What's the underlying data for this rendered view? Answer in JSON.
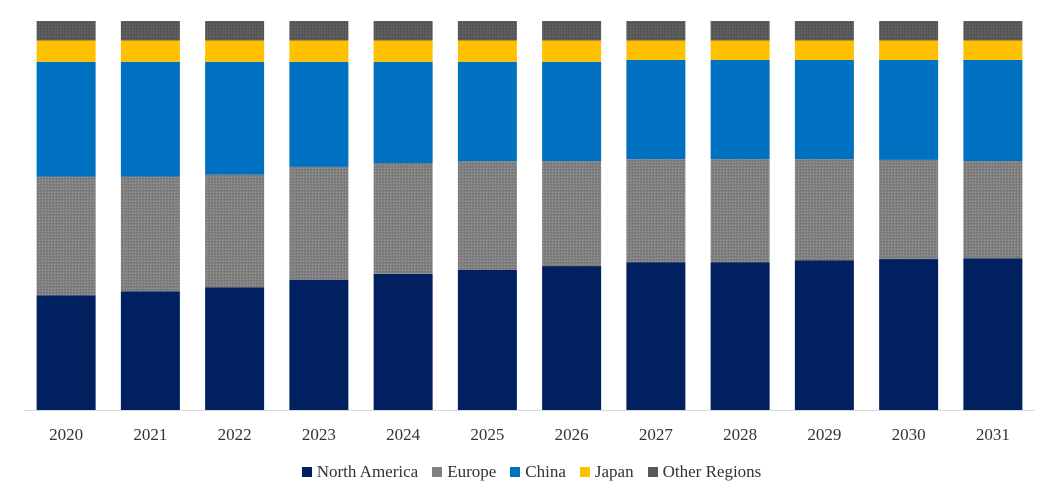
{
  "chart_data": {
    "type": "bar",
    "stacked": true,
    "normalized": true,
    "title": "",
    "xlabel": "",
    "ylabel": "",
    "ylim": [
      0,
      100
    ],
    "grid": false,
    "legend_position": "bottom",
    "categories": [
      "2020",
      "2021",
      "2022",
      "2023",
      "2024",
      "2025",
      "2026",
      "2027",
      "2028",
      "2029",
      "2030",
      "2031"
    ],
    "series": [
      {
        "name": "North America",
        "color": "#002060",
        "pattern": "solid",
        "values": [
          29.5,
          30.5,
          31.5,
          33.5,
          35.0,
          36.0,
          37.0,
          38.0,
          38.0,
          38.5,
          38.8,
          39.0
        ]
      },
      {
        "name": "Europe",
        "color": "#808080",
        "pattern": "dotted",
        "values": [
          30.5,
          29.5,
          29.0,
          29.0,
          28.5,
          28.0,
          27.0,
          26.5,
          26.5,
          26.0,
          25.5,
          25.0
        ]
      },
      {
        "name": "China",
        "color": "#0070C0",
        "pattern": "solid",
        "values": [
          29.5,
          29.5,
          29.0,
          27.0,
          26.0,
          25.5,
          25.5,
          25.5,
          25.5,
          25.5,
          25.7,
          26.0
        ]
      },
      {
        "name": "Japan",
        "color": "#FFC000",
        "pattern": "solid",
        "values": [
          5.5,
          5.5,
          5.5,
          5.5,
          5.5,
          5.5,
          5.5,
          5.0,
          5.0,
          5.0,
          5.0,
          5.0
        ]
      },
      {
        "name": "Other Regions",
        "color": "#595959",
        "pattern": "dotted",
        "values": [
          5.0,
          5.0,
          5.0,
          5.0,
          5.0,
          5.0,
          5.0,
          5.0,
          5.0,
          5.0,
          5.0,
          5.0
        ]
      }
    ]
  }
}
